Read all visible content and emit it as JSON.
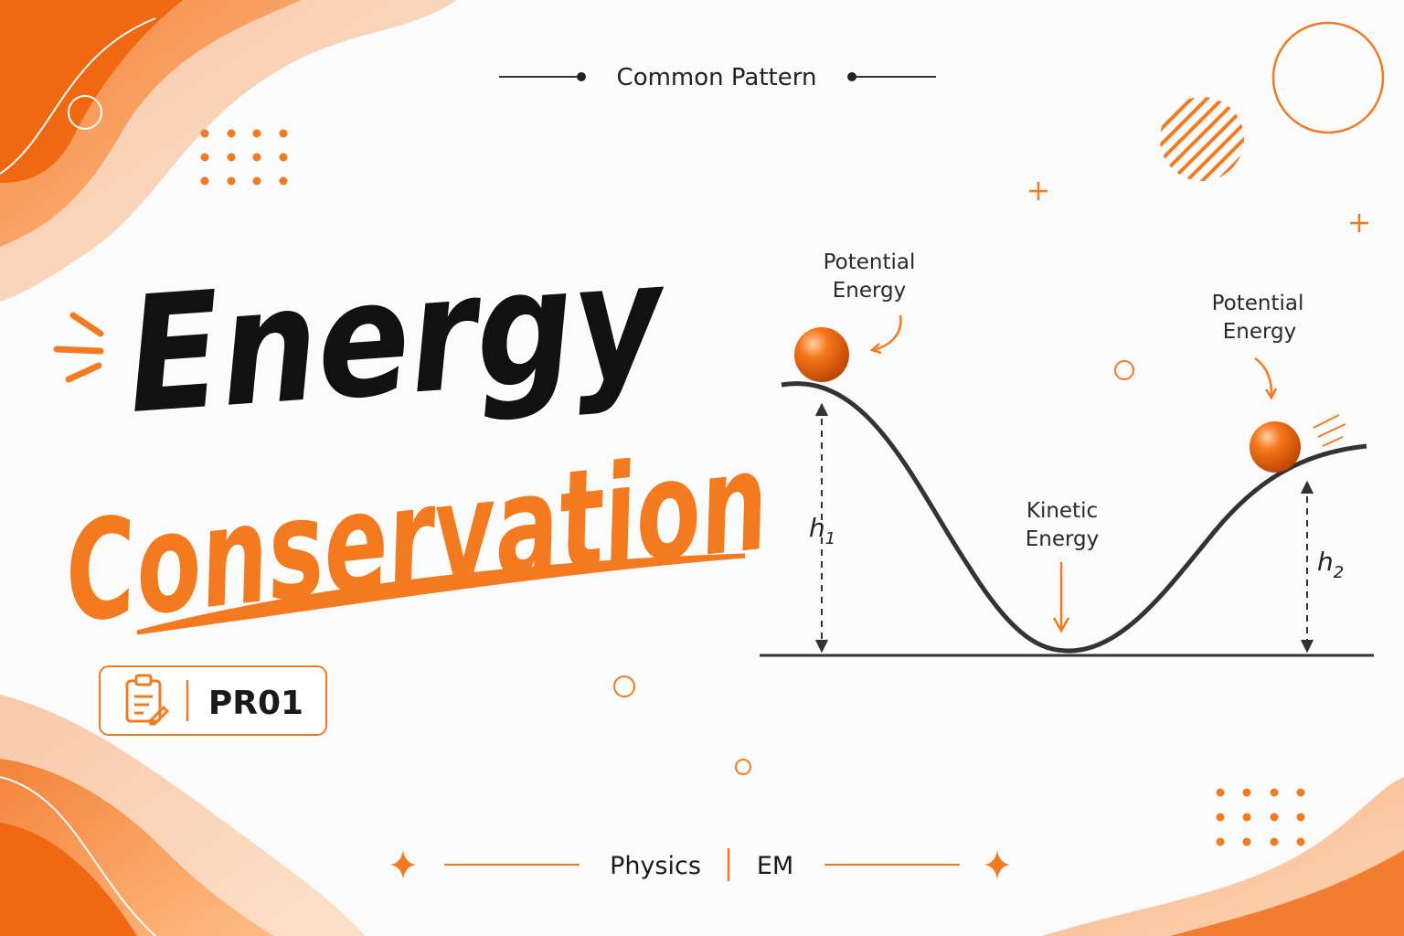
{
  "header": {
    "label": "Common Pattern"
  },
  "title": {
    "line1": "Energy",
    "line2": "Conservation"
  },
  "badge": {
    "code": "PR01"
  },
  "diagram": {
    "potential_left": [
      "Potential",
      "Energy"
    ],
    "potential_right": [
      "Potential",
      "Energy"
    ],
    "kinetic": [
      "Kinetic",
      "Energy"
    ],
    "h1": {
      "symbol": "h",
      "subscript": "1"
    },
    "h2": {
      "symbol": "h",
      "subscript": "2"
    }
  },
  "footer": {
    "subject": "Physics",
    "topic": "EM"
  }
}
